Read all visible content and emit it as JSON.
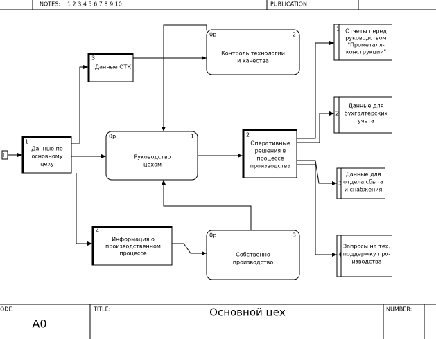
{
  "header": {
    "notes_label": "NOTES:",
    "notes_numbers": "1 2 3 4 5 6 7 8 9 10",
    "publication": "PUBLICATION"
  },
  "nodes": [
    {
      "number": "1",
      "lines": [
        "Данные по",
        "основному",
        "цеху"
      ]
    },
    {
      "number": "3",
      "lines": [
        "Данные ОТК"
      ]
    },
    {
      "tag": "0р",
      "number": "1",
      "lines": [
        "Руководство",
        "цехом"
      ]
    },
    {
      "tag": "0р",
      "number": "2",
      "lines": [
        "Контроль технологии",
        "и качества"
      ]
    },
    {
      "number": "2",
      "lines": [
        "Оперативные",
        "решения в",
        "процессе",
        "производства"
      ]
    },
    {
      "number": "4",
      "lines": [
        "Информация о",
        "производственном",
        "процессе"
      ]
    },
    {
      "tag": "0р",
      "number": "3",
      "lines": [
        "Собственно",
        "производство"
      ]
    },
    {
      "number": "1",
      "lines": [
        "Отчеты перед",
        "руководством",
        "\"Прометалл-",
        "конструкции\""
      ]
    },
    {
      "number": "2",
      "lines": [
        "Данные для",
        "бухгалтерских",
        "учета"
      ]
    },
    {
      "number": "3",
      "lines": [
        "Данные для",
        "отдела сбыта",
        "и снабжения"
      ]
    },
    {
      "number": "4",
      "lines": [
        "Запросы на тех.",
        "поддержку про-",
        "изводства"
      ]
    }
  ],
  "footer": {
    "node_label": "ODE",
    "node_value": "A0",
    "title_label": "TITLE:",
    "title": "Основной цех",
    "number_label": "NUMBER:"
  }
}
